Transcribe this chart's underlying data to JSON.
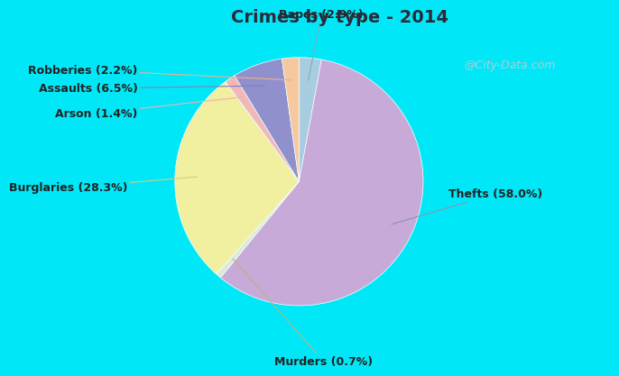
{
  "title": "Crimes by type - 2014",
  "title_color": "#2a2a3a",
  "title_fontsize": 14,
  "ordered_labels": [
    "Rapes",
    "Thefts",
    "Murders",
    "Burglaries",
    "Arson",
    "Assaults",
    "Robberies"
  ],
  "ordered_values": [
    2.9,
    58.0,
    0.7,
    28.3,
    1.4,
    6.5,
    2.2
  ],
  "ordered_colors": [
    "#a8cce0",
    "#c8aad8",
    "#d8ead8",
    "#f0f0a0",
    "#f0b8b8",
    "#9090cc",
    "#f5c8a0"
  ],
  "background_color": "#00e8f8",
  "inner_background": "#d8ede0",
  "label_fontsize": 9,
  "label_color": "#222222",
  "label_map": {
    "Thefts": "Thefts (58.0%)",
    "Burglaries": "Burglaries (28.3%)",
    "Murders": "Murders (0.7%)",
    "Assaults": "Assaults (6.5%)",
    "Robberies": "Robberies (2.2%)",
    "Rapes": "Rapes (2.9%)",
    "Arson": "Arson (1.4%)"
  },
  "watermark": "@City-Data.com",
  "watermark_color": "#b0ccd8",
  "watermark_fontsize": 9
}
